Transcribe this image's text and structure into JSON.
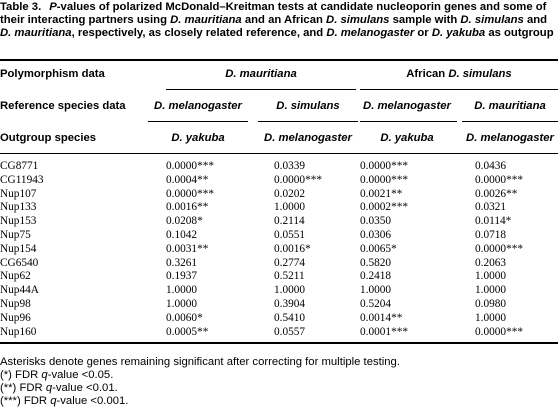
{
  "caption": {
    "label": "Table 3.",
    "text_1": "P",
    "text_2": "-values of polarized McDonald–Kreitman tests at candidate nucleoporin genes and some of their interacting partners using ",
    "text_3": "D. mauritiana",
    "text_4": " and an African ",
    "text_5": "D. simulans",
    "text_6": " sample with ",
    "text_7": "D. simulans",
    "text_8": " and ",
    "text_9": "D. mauritiana",
    "text_10": ", respectively, as closely related reference, and ",
    "text_11": "D. melanogaster",
    "text_12": " or ",
    "text_13": "D. yakuba",
    "text_14": " as outgroup"
  },
  "header": {
    "row1_label": "Polymorphism data",
    "row1_group1": "D. mauritiana",
    "row1_group2_prefix": "African ",
    "row1_group2_species": "D. simulans",
    "row2_label": "Reference species data",
    "row2_cols": [
      "D. melanogaster",
      "D. simulans",
      "D. melanogaster",
      "D. mauritiana"
    ],
    "row3_label": "Outgroup species",
    "row3_cols": [
      "D. yakuba",
      "D. melanogaster",
      "D. yakuba",
      "D. melanogaster"
    ]
  },
  "rows": [
    {
      "gene": "CG8771",
      "v": [
        "0.0000***",
        "0.0339",
        "0.0000***",
        "0.0436"
      ]
    },
    {
      "gene": "CG11943",
      "v": [
        "0.0004**",
        "0.0000***",
        "0.0000***",
        "0.0000***"
      ]
    },
    {
      "gene": "Nup107",
      "v": [
        "0.0000***",
        "0.0202",
        "0.0021**",
        "0.0026**"
      ]
    },
    {
      "gene": "Nup133",
      "v": [
        "0.0016**",
        "1.0000",
        "0.0002***",
        "0.0321"
      ]
    },
    {
      "gene": "Nup153",
      "v": [
        "0.0208*",
        "0.2114",
        "0.0350",
        "0.0114*"
      ]
    },
    {
      "gene": "Nup75",
      "v": [
        "0.1042",
        "0.0551",
        "0.0306",
        "0.0718"
      ]
    },
    {
      "gene": "Nup154",
      "v": [
        "0.0031**",
        "0.0016*",
        "0.0065*",
        "0.0000***"
      ]
    },
    {
      "gene": "CG6540",
      "v": [
        "0.3261",
        "0.2774",
        "0.5820",
        "0.2063"
      ]
    },
    {
      "gene": "Nup62",
      "v": [
        "0.1937",
        "0.5211",
        "0.2418",
        "1.0000"
      ]
    },
    {
      "gene": "Nup44A",
      "v": [
        "1.0000",
        "1.0000",
        "1.0000",
        "1.0000"
      ]
    },
    {
      "gene": "Nup98",
      "v": [
        "1.0000",
        "0.3904",
        "0.5204",
        "0.0980"
      ]
    },
    {
      "gene": "Nup96",
      "v": [
        "0.0060*",
        "0.5410",
        "0.0014**",
        "1.0000"
      ]
    },
    {
      "gene": "Nup160",
      "v": [
        "0.0005**",
        "0.0557",
        "0.0001***",
        "0.0000***"
      ]
    }
  ],
  "notes": {
    "line1": "Asterisks denote genes remaining significant after correcting for multiple testing.",
    "line2_prefix": "(*) FDR ",
    "line2_q": "q",
    "line2_suffix": "-value <0.05.",
    "line3_prefix": "(**) FDR ",
    "line3_q": "q",
    "line3_suffix": "-value <0.01.",
    "line4_prefix": "(***) FDR ",
    "line4_q": "q",
    "line4_suffix": "-value <0.001."
  }
}
